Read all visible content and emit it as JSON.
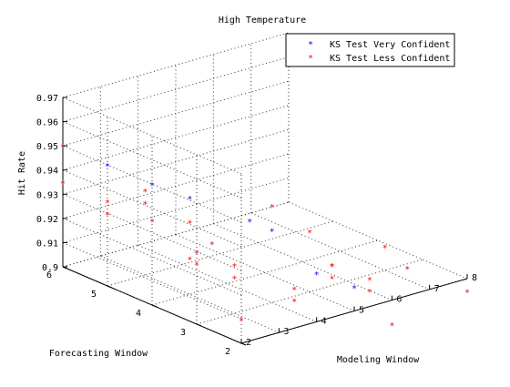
{
  "chart_data": {
    "type": "scatter",
    "projection": "3d",
    "title": "High Temperature",
    "xlabel": "Modeling Window",
    "ylabel": "Forecasting Window",
    "zlabel": "Hit Rate",
    "xlim": [
      2,
      8
    ],
    "ylim": [
      2,
      6
    ],
    "zlim": [
      0.9,
      0.97
    ],
    "xticks": [
      "2",
      "3",
      "4",
      "5",
      "6",
      "7",
      "8"
    ],
    "yticks": [
      "2",
      "3",
      "4",
      "5",
      "6"
    ],
    "zticks": [
      "0.9",
      "0.91",
      "0.92",
      "0.93",
      "0.94",
      "0.95",
      "0.96",
      "0.97"
    ],
    "grid": true,
    "legend_position": "top-right",
    "marker": "*",
    "series": [
      {
        "name": "KS Test Very Confident",
        "color": "#0000ff",
        "points": [
          {
            "x": 2,
            "y": 5,
            "z": 0.95
          },
          {
            "x": 2,
            "y": 4,
            "z": 0.95
          },
          {
            "x": 3,
            "y": 4,
            "z": 0.94
          },
          {
            "x": 4,
            "y": 3.5,
            "z": 0.93
          },
          {
            "x": 4,
            "y": 3,
            "z": 0.93
          },
          {
            "x": 4,
            "y": 2,
            "z": 0.92
          },
          {
            "x": 5,
            "y": 2,
            "z": 0.91
          }
        ]
      },
      {
        "name": "KS Test Less Confident",
        "color": "#ff0000",
        "points": [
          {
            "x": 2,
            "y": 6,
            "z": 0.95
          },
          {
            "x": 2,
            "y": 6,
            "z": 0.935
          },
          {
            "x": 2,
            "y": 5,
            "z": 0.935
          },
          {
            "x": 2,
            "y": 4,
            "z": 0.935
          },
          {
            "x": 2,
            "y": 5,
            "z": 0.93
          },
          {
            "x": 3,
            "y": 5,
            "z": 0.935
          },
          {
            "x": 3,
            "y": 5,
            "z": 0.93
          },
          {
            "x": 3,
            "y": 4,
            "z": 0.93
          },
          {
            "x": 3,
            "y": 4,
            "z": 0.915
          },
          {
            "x": 2,
            "y": 3,
            "z": 0.93
          },
          {
            "x": 2,
            "y": 3,
            "z": 0.925
          },
          {
            "x": 3,
            "y": 3.5,
            "z": 0.925
          },
          {
            "x": 3,
            "y": 3,
            "z": 0.92
          },
          {
            "x": 3,
            "y": 3,
            "z": 0.915
          },
          {
            "x": 4,
            "y": 3,
            "z": 0.94
          },
          {
            "x": 2,
            "y": 2,
            "z": 0.91
          },
          {
            "x": 4,
            "y": 2.5,
            "z": 0.91
          },
          {
            "x": 4,
            "y": 2.5,
            "z": 0.905
          },
          {
            "x": 5,
            "y": 3,
            "z": 0.925
          },
          {
            "x": 5,
            "y": 2.5,
            "z": 0.915
          },
          {
            "x": 5,
            "y": 2.5,
            "z": 0.915
          },
          {
            "x": 5,
            "y": 2.5,
            "z": 0.91
          },
          {
            "x": 6,
            "y": 2.5,
            "z": 0.905
          },
          {
            "x": 6,
            "y": 2.5,
            "z": 0.9
          },
          {
            "x": 6,
            "y": 2,
            "z": 0.89
          },
          {
            "x": 7,
            "y": 3,
            "z": 0.91
          },
          {
            "x": 7,
            "y": 2.5,
            "z": 0.905
          },
          {
            "x": 8,
            "y": 2,
            "z": 0.895
          }
        ]
      }
    ]
  }
}
